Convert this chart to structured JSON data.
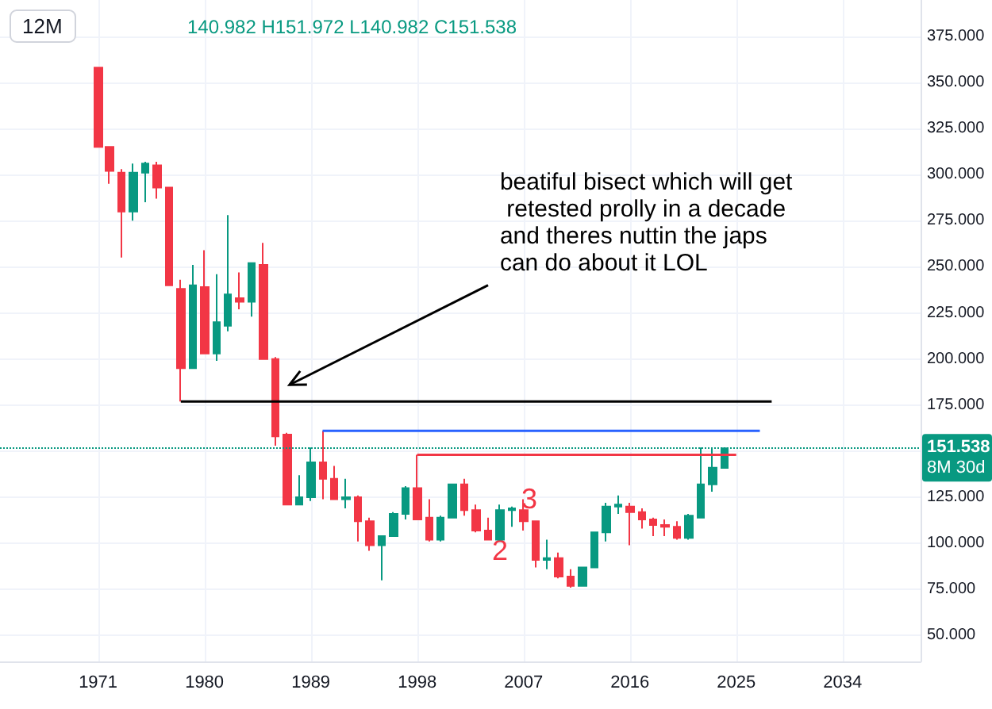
{
  "chart_data": {
    "type": "candlestick",
    "title": "12M",
    "x": [
      1971,
      1972,
      1973,
      1974,
      1975,
      1976,
      1977,
      1978,
      1979,
      1980,
      1981,
      1982,
      1983,
      1984,
      1985,
      1986,
      1987,
      1988,
      1989,
      1990,
      1991,
      1992,
      1993,
      1994,
      1995,
      1996,
      1997,
      1998,
      1999,
      2000,
      2001,
      2002,
      2003,
      2004,
      2005,
      2006,
      2007,
      2008,
      2009,
      2010,
      2011,
      2012,
      2013,
      2014,
      2015,
      2016,
      2017,
      2018,
      2019,
      2020,
      2021,
      2022,
      2023,
      2024
    ],
    "ohlc": [
      [
        358,
        358,
        315,
        315
      ],
      [
        315,
        315,
        295,
        302
      ],
      [
        301,
        303,
        255,
        280
      ],
      [
        280,
        306,
        275,
        301
      ],
      [
        301,
        307,
        285,
        306
      ],
      [
        305,
        307,
        287,
        293
      ],
      [
        293,
        293,
        240,
        240
      ],
      [
        238,
        243,
        177,
        195
      ],
      [
        195,
        251,
        195,
        240
      ],
      [
        239,
        259,
        203,
        203
      ],
      [
        203,
        246,
        199,
        220
      ],
      [
        218,
        278,
        215,
        235
      ],
      [
        233,
        247,
        227,
        231
      ],
      [
        231,
        252,
        223,
        252
      ],
      [
        251,
        263,
        200,
        200
      ],
      [
        200,
        201,
        153,
        158
      ],
      [
        159,
        160,
        121,
        121
      ],
      [
        121,
        137,
        121,
        125
      ],
      [
        125,
        152,
        123,
        144
      ],
      [
        144,
        161,
        124,
        135
      ],
      [
        135,
        142,
        124,
        124
      ],
      [
        124,
        135,
        119,
        125
      ],
      [
        125,
        126,
        101,
        112
      ],
      [
        112,
        114,
        96,
        99
      ],
      [
        99,
        104,
        80,
        104
      ],
      [
        104,
        117,
        104,
        116
      ],
      [
        116,
        131,
        113,
        130
      ],
      [
        130,
        148,
        113,
        113
      ],
      [
        114,
        124,
        101,
        102
      ],
      [
        102,
        115,
        101,
        114
      ],
      [
        114,
        132,
        114,
        132
      ],
      [
        132,
        135,
        115,
        118
      ],
      [
        118,
        121,
        106,
        107
      ],
      [
        107,
        114,
        102,
        102
      ],
      [
        102,
        121,
        102,
        118
      ],
      [
        118,
        120,
        109,
        119
      ],
      [
        118,
        124,
        107,
        112
      ],
      [
        112,
        112,
        87,
        91
      ],
      [
        91,
        102,
        86,
        92
      ],
      [
        92,
        95,
        81,
        82
      ],
      [
        82,
        86,
        76,
        77
      ],
      [
        77,
        87,
        77,
        87
      ],
      [
        87,
        106,
        87,
        106
      ],
      [
        106,
        122,
        101,
        120
      ],
      [
        120,
        126,
        116,
        121
      ],
      [
        120,
        122,
        99,
        117
      ],
      [
        117,
        119,
        108,
        113
      ],
      [
        113,
        114,
        104,
        110
      ],
      [
        110,
        113,
        104,
        109
      ],
      [
        109,
        112,
        102,
        103
      ],
      [
        103,
        116,
        102,
        115
      ],
      [
        114,
        152,
        114,
        132
      ],
      [
        132,
        152,
        128,
        141
      ],
      [
        140.982,
        151.972,
        140.982,
        151.538
      ]
    ],
    "colors": [
      "#f23645",
      "#f23645",
      "#f23645",
      "#089981",
      "#089981",
      "#f23645",
      "#f23645",
      "#f23645",
      "#089981",
      "#f23645",
      "#089981",
      "#089981",
      "#f23645",
      "#089981",
      "#f23645",
      "#f23645",
      "#f23645",
      "#089981",
      "#089981",
      "#f23645",
      "#f23645",
      "#089981",
      "#f23645",
      "#f23645",
      "#089981",
      "#089981",
      "#089981",
      "#f23645",
      "#f23645",
      "#089981",
      "#089981",
      "#f23645",
      "#f23645",
      "#f23645",
      "#089981",
      "#089981",
      "#f23645",
      "#f23645",
      "#089981",
      "#f23645",
      "#f23645",
      "#089981",
      "#089981",
      "#089981",
      "#089981",
      "#f23645",
      "#f23645",
      "#f23645",
      "#f23645",
      "#f23645",
      "#089981",
      "#089981",
      "#089981",
      "#089981"
    ],
    "series": [
      {
        "type": "line",
        "color": "#000000",
        "x": [
          1978,
          2028
        ],
        "values": [
          177,
          177
        ]
      },
      {
        "type": "line",
        "color": "#2962ff",
        "x": [
          1990,
          2027
        ],
        "values": [
          161,
          161
        ]
      },
      {
        "type": "line",
        "color": "#f23645",
        "x": [
          1998,
          2025
        ],
        "values": [
          148,
          148
        ]
      }
    ],
    "ref_lines": [
      {
        "axis": "y",
        "value": 151.538,
        "label": "151.538",
        "color": "#089981",
        "line_style": "dotted"
      }
    ],
    "annotations": [
      "140.982 H151.972 L140.982 C151.538",
      "beatiful bisect which will get\n retested prolly in a decade\nand theres nuttin the japs\ncan do about it LOL",
      "8M 30d",
      "2",
      "3"
    ],
    "xlim": [
      1962.7,
      2040.6
    ],
    "xticks": [
      1971,
      1980,
      1989,
      1998,
      2007,
      2016,
      2025,
      2034
    ],
    "ylim": [
      36,
      394.7
    ],
    "yticks": [
      {
        "value": 50,
        "label": "50.000"
      },
      {
        "value": 75,
        "label": "75.000"
      },
      {
        "value": 100,
        "label": "100.000"
      },
      {
        "value": 125,
        "label": "125.000"
      },
      {
        "value": 150,
        "label": null
      },
      {
        "value": 175,
        "label": "175.000"
      },
      {
        "value": 200,
        "label": "200.000"
      },
      {
        "value": 225,
        "label": "225.000"
      },
      {
        "value": 250,
        "label": "250.000"
      },
      {
        "value": 275,
        "label": "275.000"
      },
      {
        "value": 300,
        "label": "300.000"
      },
      {
        "value": 325,
        "label": "325.000"
      },
      {
        "value": 350,
        "label": "350.000"
      },
      {
        "value": 375,
        "label": "375.000"
      }
    ],
    "grid": true,
    "marker": "none"
  }
}
